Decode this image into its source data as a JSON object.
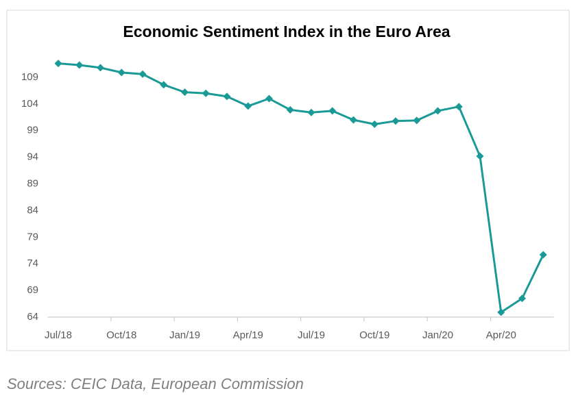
{
  "chart_data": {
    "type": "line",
    "title": "Economic Sentiment Index in the Euro Area",
    "categories": [
      "Jul/18",
      null,
      null,
      "Oct/18",
      null,
      null,
      "Jan/19",
      null,
      null,
      "Apr/19",
      null,
      null,
      "Jul/19",
      null,
      null,
      "Oct/19",
      null,
      null,
      "Jan/20",
      null,
      null,
      "Apr/20",
      null,
      null
    ],
    "series": [
      {
        "name": "Economic Sentiment Index",
        "color": "#1a9a96",
        "values": [
          111.6,
          111.3,
          110.8,
          109.9,
          109.6,
          107.6,
          106.2,
          106.0,
          105.4,
          103.6,
          105.0,
          102.9,
          102.4,
          102.7,
          101.0,
          100.2,
          100.8,
          100.9,
          102.7,
          103.5,
          94.2,
          64.9,
          67.5,
          75.7
        ]
      }
    ],
    "ylim": [
      64,
      113
    ],
    "yticks": [
      64,
      69,
      74,
      79,
      84,
      89,
      94,
      99,
      104,
      109
    ],
    "grid": false,
    "caption": "Sources: CEIC Data, European Commission"
  }
}
